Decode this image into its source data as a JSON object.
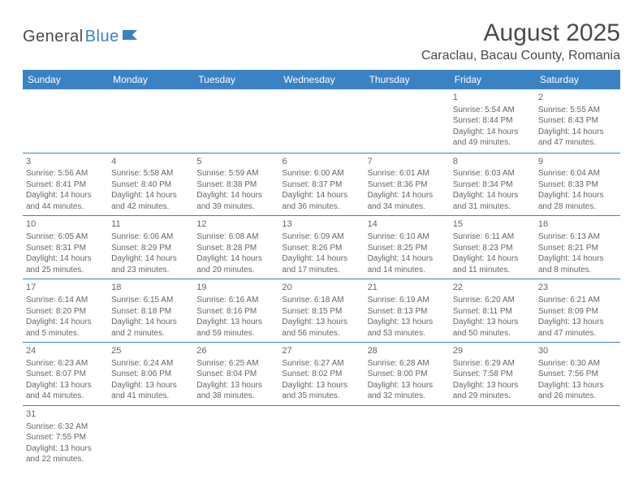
{
  "logo": {
    "part1": "General",
    "part2": "Blue"
  },
  "title": "August 2025",
  "location": "Caraclau, Bacau County, Romania",
  "colors": {
    "header_bg": "#3b82c4",
    "header_text": "#ffffff",
    "border": "#3b82c4",
    "body_text": "#666666",
    "title_text": "#4a4a4a"
  },
  "day_headers": [
    "Sunday",
    "Monday",
    "Tuesday",
    "Wednesday",
    "Thursday",
    "Friday",
    "Saturday"
  ],
  "weeks": [
    [
      null,
      null,
      null,
      null,
      null,
      {
        "n": "1",
        "sr": "Sunrise: 5:54 AM",
        "ss": "Sunset: 8:44 PM",
        "d1": "Daylight: 14 hours",
        "d2": "and 49 minutes."
      },
      {
        "n": "2",
        "sr": "Sunrise: 5:55 AM",
        "ss": "Sunset: 8:43 PM",
        "d1": "Daylight: 14 hours",
        "d2": "and 47 minutes."
      }
    ],
    [
      {
        "n": "3",
        "sr": "Sunrise: 5:56 AM",
        "ss": "Sunset: 8:41 PM",
        "d1": "Daylight: 14 hours",
        "d2": "and 44 minutes."
      },
      {
        "n": "4",
        "sr": "Sunrise: 5:58 AM",
        "ss": "Sunset: 8:40 PM",
        "d1": "Daylight: 14 hours",
        "d2": "and 42 minutes."
      },
      {
        "n": "5",
        "sr": "Sunrise: 5:59 AM",
        "ss": "Sunset: 8:38 PM",
        "d1": "Daylight: 14 hours",
        "d2": "and 39 minutes."
      },
      {
        "n": "6",
        "sr": "Sunrise: 6:00 AM",
        "ss": "Sunset: 8:37 PM",
        "d1": "Daylight: 14 hours",
        "d2": "and 36 minutes."
      },
      {
        "n": "7",
        "sr": "Sunrise: 6:01 AM",
        "ss": "Sunset: 8:36 PM",
        "d1": "Daylight: 14 hours",
        "d2": "and 34 minutes."
      },
      {
        "n": "8",
        "sr": "Sunrise: 6:03 AM",
        "ss": "Sunset: 8:34 PM",
        "d1": "Daylight: 14 hours",
        "d2": "and 31 minutes."
      },
      {
        "n": "9",
        "sr": "Sunrise: 6:04 AM",
        "ss": "Sunset: 8:33 PM",
        "d1": "Daylight: 14 hours",
        "d2": "and 28 minutes."
      }
    ],
    [
      {
        "n": "10",
        "sr": "Sunrise: 6:05 AM",
        "ss": "Sunset: 8:31 PM",
        "d1": "Daylight: 14 hours",
        "d2": "and 25 minutes."
      },
      {
        "n": "11",
        "sr": "Sunrise: 6:06 AM",
        "ss": "Sunset: 8:29 PM",
        "d1": "Daylight: 14 hours",
        "d2": "and 23 minutes."
      },
      {
        "n": "12",
        "sr": "Sunrise: 6:08 AM",
        "ss": "Sunset: 8:28 PM",
        "d1": "Daylight: 14 hours",
        "d2": "and 20 minutes."
      },
      {
        "n": "13",
        "sr": "Sunrise: 6:09 AM",
        "ss": "Sunset: 8:26 PM",
        "d1": "Daylight: 14 hours",
        "d2": "and 17 minutes."
      },
      {
        "n": "14",
        "sr": "Sunrise: 6:10 AM",
        "ss": "Sunset: 8:25 PM",
        "d1": "Daylight: 14 hours",
        "d2": "and 14 minutes."
      },
      {
        "n": "15",
        "sr": "Sunrise: 6:11 AM",
        "ss": "Sunset: 8:23 PM",
        "d1": "Daylight: 14 hours",
        "d2": "and 11 minutes."
      },
      {
        "n": "16",
        "sr": "Sunrise: 6:13 AM",
        "ss": "Sunset: 8:21 PM",
        "d1": "Daylight: 14 hours",
        "d2": "and 8 minutes."
      }
    ],
    [
      {
        "n": "17",
        "sr": "Sunrise: 6:14 AM",
        "ss": "Sunset: 8:20 PM",
        "d1": "Daylight: 14 hours",
        "d2": "and 5 minutes."
      },
      {
        "n": "18",
        "sr": "Sunrise: 6:15 AM",
        "ss": "Sunset: 8:18 PM",
        "d1": "Daylight: 14 hours",
        "d2": "and 2 minutes."
      },
      {
        "n": "19",
        "sr": "Sunrise: 6:16 AM",
        "ss": "Sunset: 8:16 PM",
        "d1": "Daylight: 13 hours",
        "d2": "and 59 minutes."
      },
      {
        "n": "20",
        "sr": "Sunrise: 6:18 AM",
        "ss": "Sunset: 8:15 PM",
        "d1": "Daylight: 13 hours",
        "d2": "and 56 minutes."
      },
      {
        "n": "21",
        "sr": "Sunrise: 6:19 AM",
        "ss": "Sunset: 8:13 PM",
        "d1": "Daylight: 13 hours",
        "d2": "and 53 minutes."
      },
      {
        "n": "22",
        "sr": "Sunrise: 6:20 AM",
        "ss": "Sunset: 8:11 PM",
        "d1": "Daylight: 13 hours",
        "d2": "and 50 minutes."
      },
      {
        "n": "23",
        "sr": "Sunrise: 6:21 AM",
        "ss": "Sunset: 8:09 PM",
        "d1": "Daylight: 13 hours",
        "d2": "and 47 minutes."
      }
    ],
    [
      {
        "n": "24",
        "sr": "Sunrise: 6:23 AM",
        "ss": "Sunset: 8:07 PM",
        "d1": "Daylight: 13 hours",
        "d2": "and 44 minutes."
      },
      {
        "n": "25",
        "sr": "Sunrise: 6:24 AM",
        "ss": "Sunset: 8:06 PM",
        "d1": "Daylight: 13 hours",
        "d2": "and 41 minutes."
      },
      {
        "n": "26",
        "sr": "Sunrise: 6:25 AM",
        "ss": "Sunset: 8:04 PM",
        "d1": "Daylight: 13 hours",
        "d2": "and 38 minutes."
      },
      {
        "n": "27",
        "sr": "Sunrise: 6:27 AM",
        "ss": "Sunset: 8:02 PM",
        "d1": "Daylight: 13 hours",
        "d2": "and 35 minutes."
      },
      {
        "n": "28",
        "sr": "Sunrise: 6:28 AM",
        "ss": "Sunset: 8:00 PM",
        "d1": "Daylight: 13 hours",
        "d2": "and 32 minutes."
      },
      {
        "n": "29",
        "sr": "Sunrise: 6:29 AM",
        "ss": "Sunset: 7:58 PM",
        "d1": "Daylight: 13 hours",
        "d2": "and 29 minutes."
      },
      {
        "n": "30",
        "sr": "Sunrise: 6:30 AM",
        "ss": "Sunset: 7:56 PM",
        "d1": "Daylight: 13 hours",
        "d2": "and 26 minutes."
      }
    ],
    [
      {
        "n": "31",
        "sr": "Sunrise: 6:32 AM",
        "ss": "Sunset: 7:55 PM",
        "d1": "Daylight: 13 hours",
        "d2": "and 22 minutes."
      },
      null,
      null,
      null,
      null,
      null,
      null
    ]
  ]
}
